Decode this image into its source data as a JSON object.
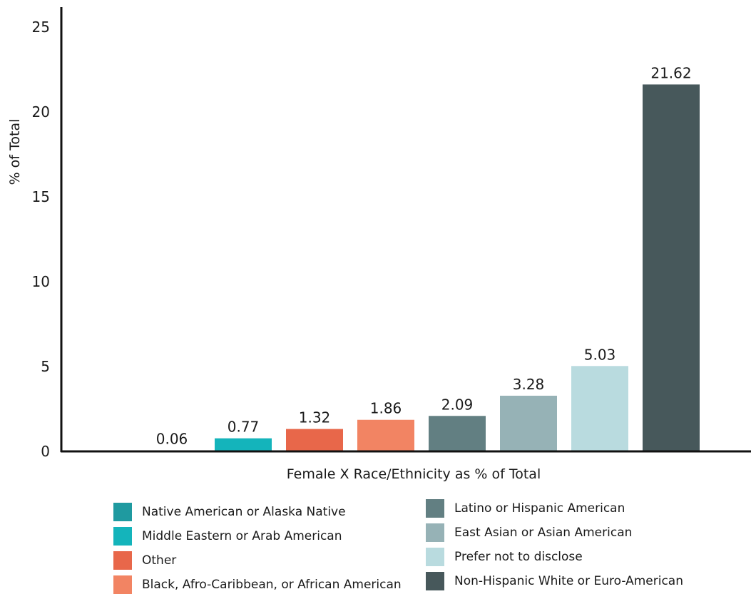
{
  "chart_data": {
    "type": "bar",
    "xlabel": "Female X Race/Ethnicity as % of Total",
    "ylabel": "% of Total",
    "ylim": [
      0,
      26
    ],
    "yticks": [
      0,
      5,
      10,
      15,
      20,
      25
    ],
    "grid": false,
    "legend_position": "bottom",
    "categories": [
      "Native American or Alaska Native",
      "Middle Eastern or Arab American",
      "Other",
      "Black, Afro-Caribbean, or African American",
      "Latino or Hispanic American",
      "East Asian or Asian American",
      "Prefer not to disclose",
      "Non-Hispanic White or Euro-American"
    ],
    "values": [
      0.06,
      0.77,
      1.32,
      1.86,
      2.09,
      3.28,
      5.03,
      21.62
    ],
    "value_labels": [
      "0.06",
      "0.77",
      "1.32",
      "1.86",
      "2.09",
      "3.28",
      "5.03",
      "21.62"
    ],
    "colors": [
      "#1f9aa0",
      "#14b4bb",
      "#e8674a",
      "#f28463",
      "#627f82",
      "#96b2b6",
      "#b9dbdf",
      "#47585b"
    ]
  },
  "legend": {
    "left": [
      {
        "label": "Native American or Alaska Native",
        "color": "#1f9aa0"
      },
      {
        "label": "Middle Eastern or Arab American",
        "color": "#14b4bb"
      },
      {
        "label": "Other",
        "color": "#e8674a"
      },
      {
        "label": "Black, Afro-Caribbean, or African American",
        "color": "#f28463"
      }
    ],
    "right": [
      {
        "label": "Latino or Hispanic American",
        "color": "#627f82"
      },
      {
        "label": "East Asian or Asian American",
        "color": "#96b2b6"
      },
      {
        "label": "Prefer not to disclose",
        "color": "#b9dbdf"
      },
      {
        "label": "Non-Hispanic White or Euro-American",
        "color": "#47585b"
      }
    ]
  }
}
